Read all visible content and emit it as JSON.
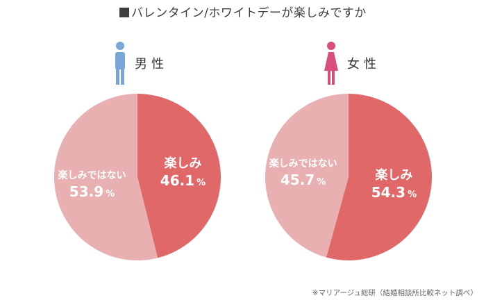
{
  "title": "バレンタイン/ホワイトデーが楽しみですか",
  "note": "※マリアージュ総研（結婚相談所比較ネット調べ）",
  "colors": {
    "enjoy": "#e06868",
    "not_enjoy": "#e8b0b0",
    "male_icon": "#79a6d8",
    "female_icon": "#d94f7c"
  },
  "chart_data": [
    {
      "type": "pie",
      "title": "男性",
      "icon": "male-person-icon",
      "slices": [
        {
          "label": "楽しみ",
          "value": 46.1,
          "display": "46.1",
          "unit": "%"
        },
        {
          "label": "楽しみではない",
          "value": 53.9,
          "display": "53.9",
          "unit": "%"
        }
      ]
    },
    {
      "type": "pie",
      "title": "女性",
      "icon": "female-person-icon",
      "slices": [
        {
          "label": "楽しみ",
          "value": 54.3,
          "display": "54.3",
          "unit": "%"
        },
        {
          "label": "楽しみではない",
          "value": 45.7,
          "display": "45.7",
          "unit": "%"
        }
      ]
    }
  ]
}
